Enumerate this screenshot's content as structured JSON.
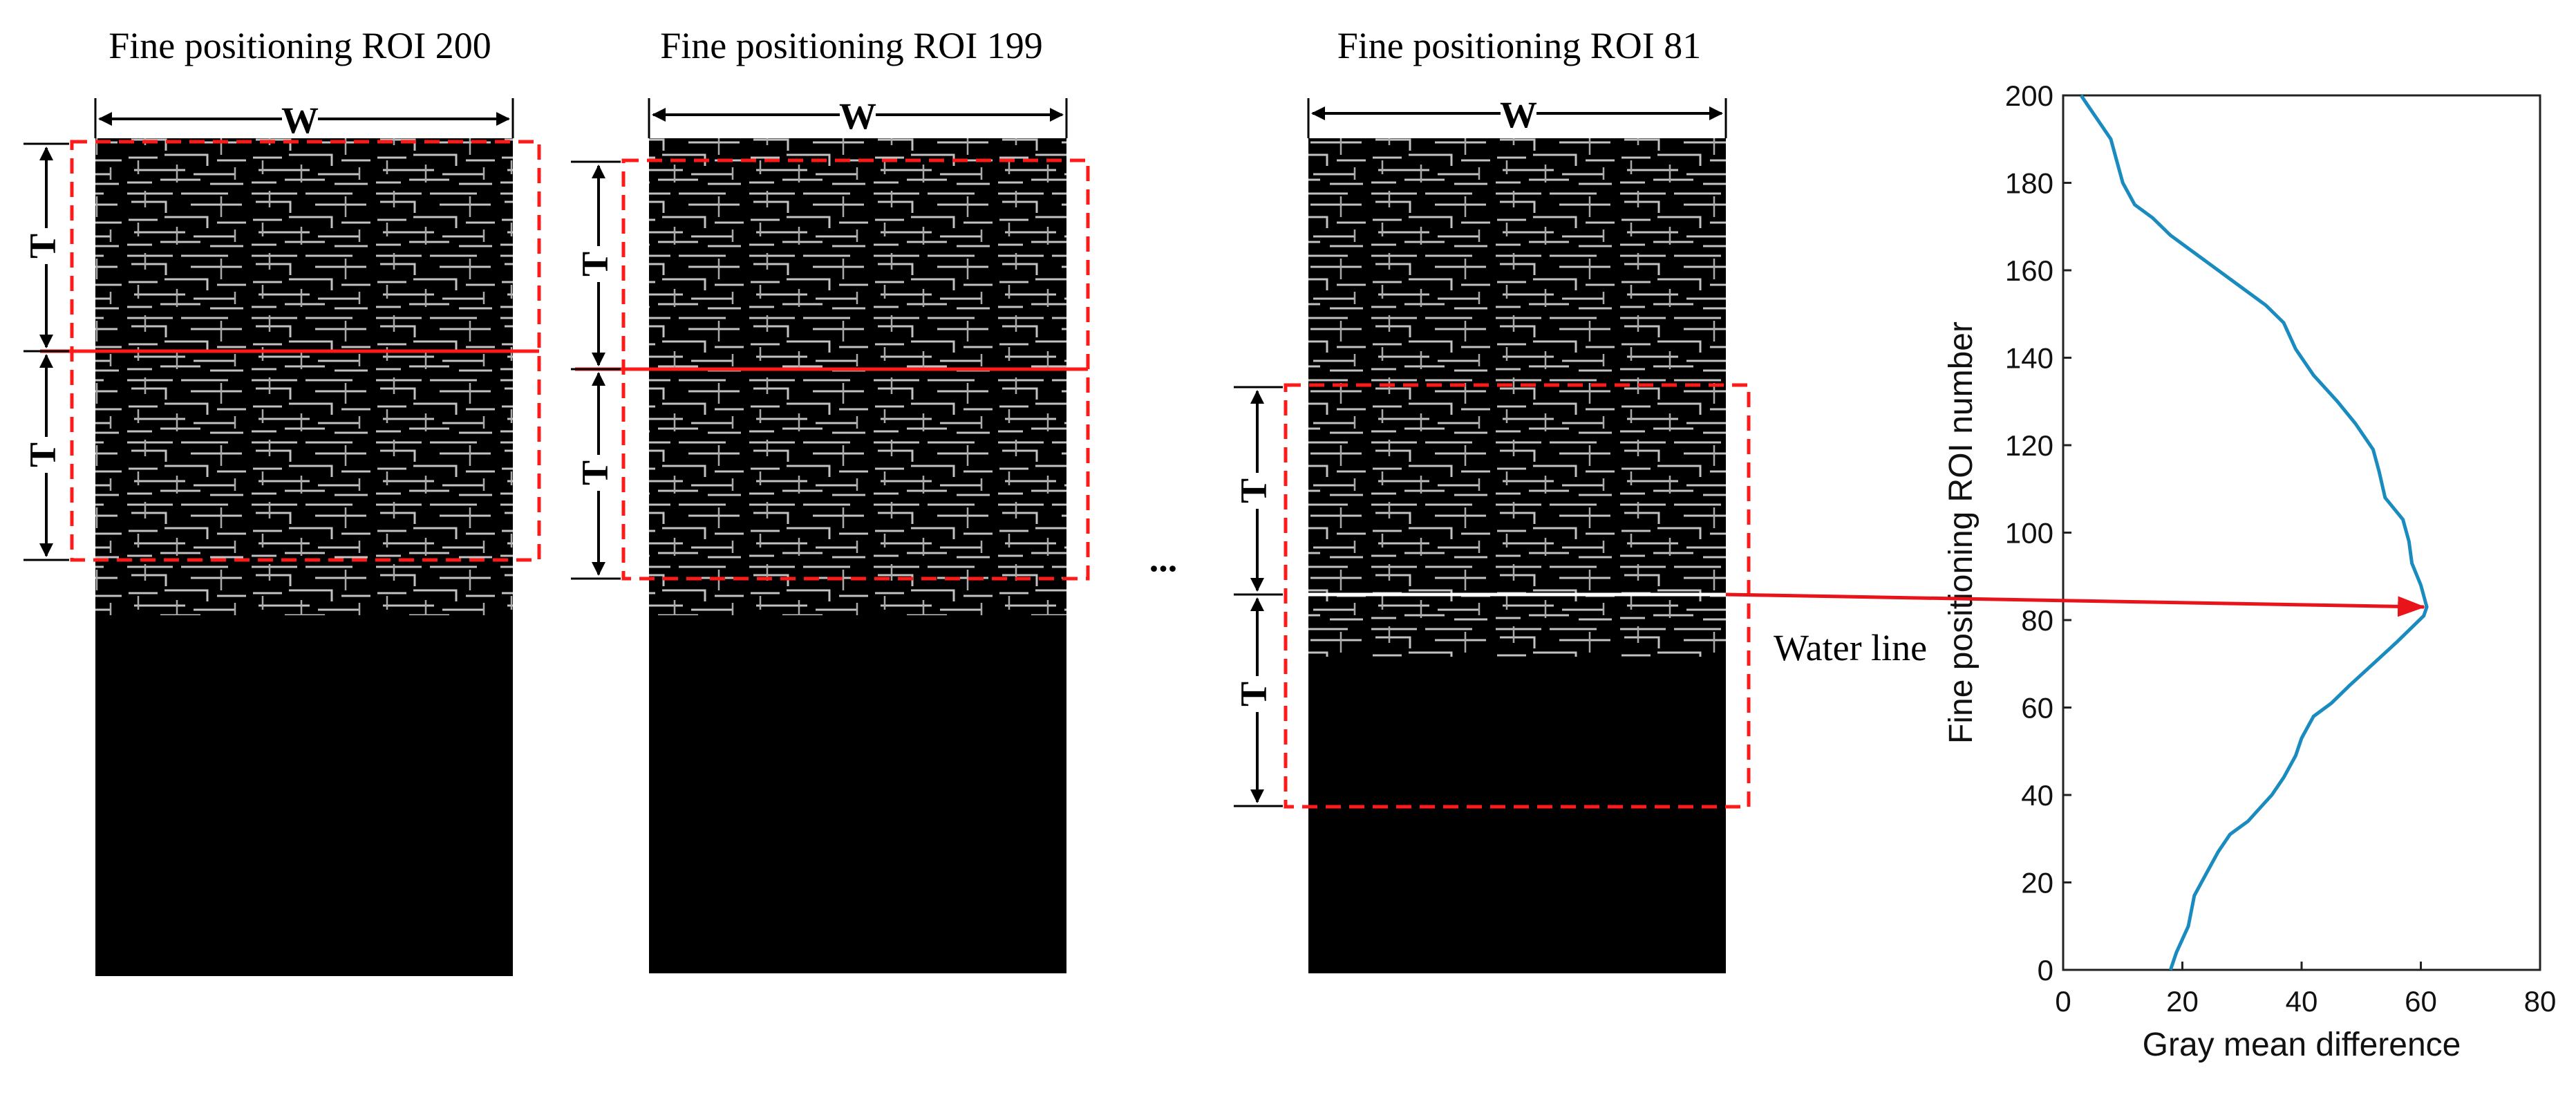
{
  "panels": [
    {
      "title": "Fine positioning ROI 200",
      "width_label": "W",
      "upper_label": "T",
      "lower_label": "T"
    },
    {
      "title": "Fine positioning ROI 199",
      "width_label": "W",
      "upper_label": "T",
      "lower_label": "T"
    },
    {
      "title": "Fine positioning ROI 81",
      "width_label": "W",
      "upper_label": "T",
      "lower_label": "T"
    }
  ],
  "ellipsis": "...",
  "water_line_label": "Water line",
  "colors": {
    "roi_box": "#ff1a1a",
    "arrow": "#e8141a",
    "curve": "#1a8bbf",
    "edge_image": "#000000"
  },
  "chart_data": {
    "type": "line",
    "xlabel": "Gray mean difference",
    "ylabel": "Fine positioning ROI number",
    "xlim": [
      0,
      80
    ],
    "ylim": [
      0,
      200
    ],
    "xticks": [
      0,
      20,
      40,
      60,
      80
    ],
    "yticks": [
      0,
      20,
      40,
      60,
      80,
      100,
      120,
      140,
      160,
      180,
      200
    ],
    "grid": false,
    "series": [
      {
        "x": [
          18,
          19,
          21,
          22,
          24,
          26,
          28,
          31,
          33,
          35,
          37,
          39,
          40,
          42,
          45,
          48,
          52,
          56,
          59,
          60.5,
          61,
          60,
          58.5,
          58,
          57,
          54,
          53,
          52,
          49,
          46,
          42,
          39,
          37,
          34,
          30,
          26,
          22,
          18,
          15,
          12,
          10,
          9,
          8,
          6,
          4,
          3
        ],
        "y": [
          0,
          4,
          10,
          17,
          22,
          27,
          31,
          34,
          37,
          40,
          44,
          49,
          53,
          58,
          61,
          65,
          70,
          75,
          79,
          81,
          83,
          88,
          93,
          98,
          103,
          108,
          114,
          119,
          125,
          130,
          136,
          142,
          148,
          152,
          156,
          160,
          164,
          168,
          172,
          175,
          180,
          185,
          190,
          194,
          198,
          200
        ]
      }
    ]
  }
}
